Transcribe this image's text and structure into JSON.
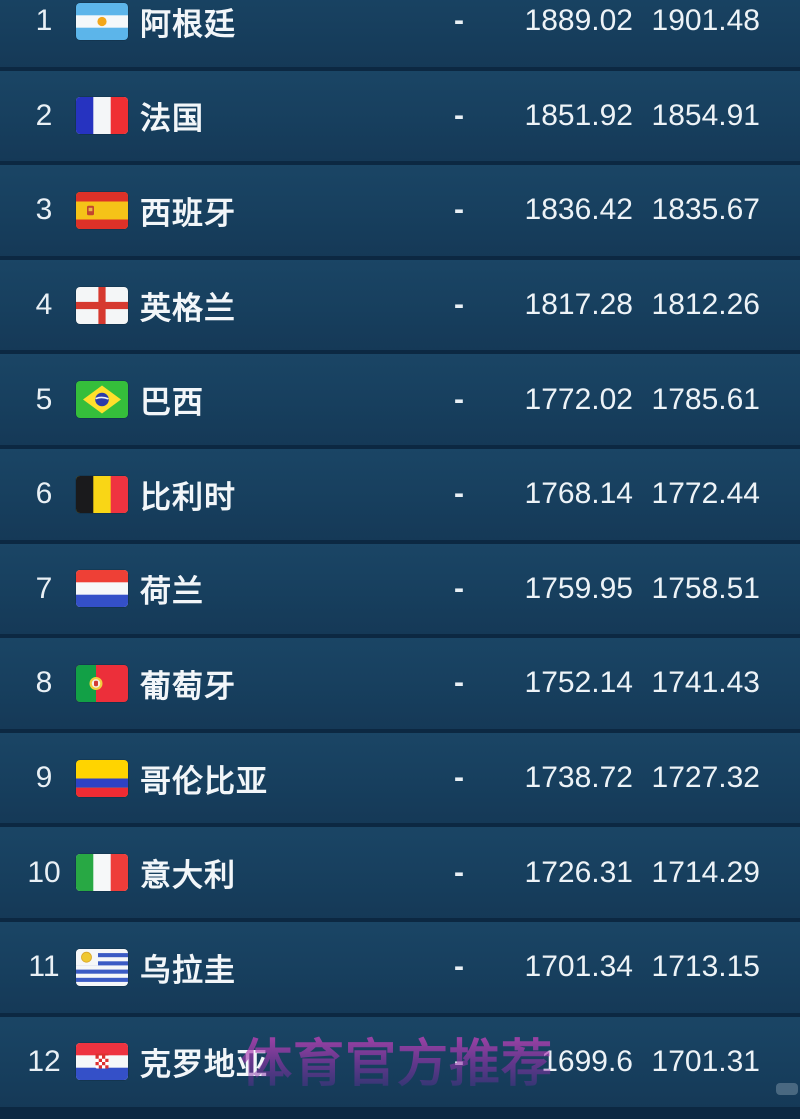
{
  "colors": {
    "row_background": "#17415F",
    "separator": "#0C2842",
    "text": "#EDF3F7",
    "watermark": "#B238A0"
  },
  "watermark": {
    "text": "体育官方推荐"
  },
  "ranking": {
    "rows": [
      {
        "rank": "1",
        "team": "阿根廷",
        "flag": "argentina",
        "change": "-",
        "points": "1889.02",
        "prev_points": "1901.48"
      },
      {
        "rank": "2",
        "team": "法国",
        "flag": "france",
        "change": "-",
        "points": "1851.92",
        "prev_points": "1854.91"
      },
      {
        "rank": "3",
        "team": "西班牙",
        "flag": "spain",
        "change": "-",
        "points": "1836.42",
        "prev_points": "1835.67"
      },
      {
        "rank": "4",
        "team": "英格兰",
        "flag": "england",
        "change": "-",
        "points": "1817.28",
        "prev_points": "1812.26"
      },
      {
        "rank": "5",
        "team": "巴西",
        "flag": "brazil",
        "change": "-",
        "points": "1772.02",
        "prev_points": "1785.61"
      },
      {
        "rank": "6",
        "team": "比利时",
        "flag": "belgium",
        "change": "-",
        "points": "1768.14",
        "prev_points": "1772.44"
      },
      {
        "rank": "7",
        "team": "荷兰",
        "flag": "netherlands",
        "change": "-",
        "points": "1759.95",
        "prev_points": "1758.51"
      },
      {
        "rank": "8",
        "team": "葡萄牙",
        "flag": "portugal",
        "change": "-",
        "points": "1752.14",
        "prev_points": "1741.43"
      },
      {
        "rank": "9",
        "team": "哥伦比亚",
        "flag": "colombia",
        "change": "-",
        "points": "1738.72",
        "prev_points": "1727.32"
      },
      {
        "rank": "10",
        "team": "意大利",
        "flag": "italy",
        "change": "-",
        "points": "1726.31",
        "prev_points": "1714.29"
      },
      {
        "rank": "11",
        "team": "乌拉圭",
        "flag": "uruguay",
        "change": "-",
        "points": "1701.34",
        "prev_points": "1713.15"
      },
      {
        "rank": "12",
        "team": "克罗地亚",
        "flag": "croatia",
        "change": "-",
        "points": "1699.6",
        "prev_points": "1701.31"
      }
    ]
  }
}
